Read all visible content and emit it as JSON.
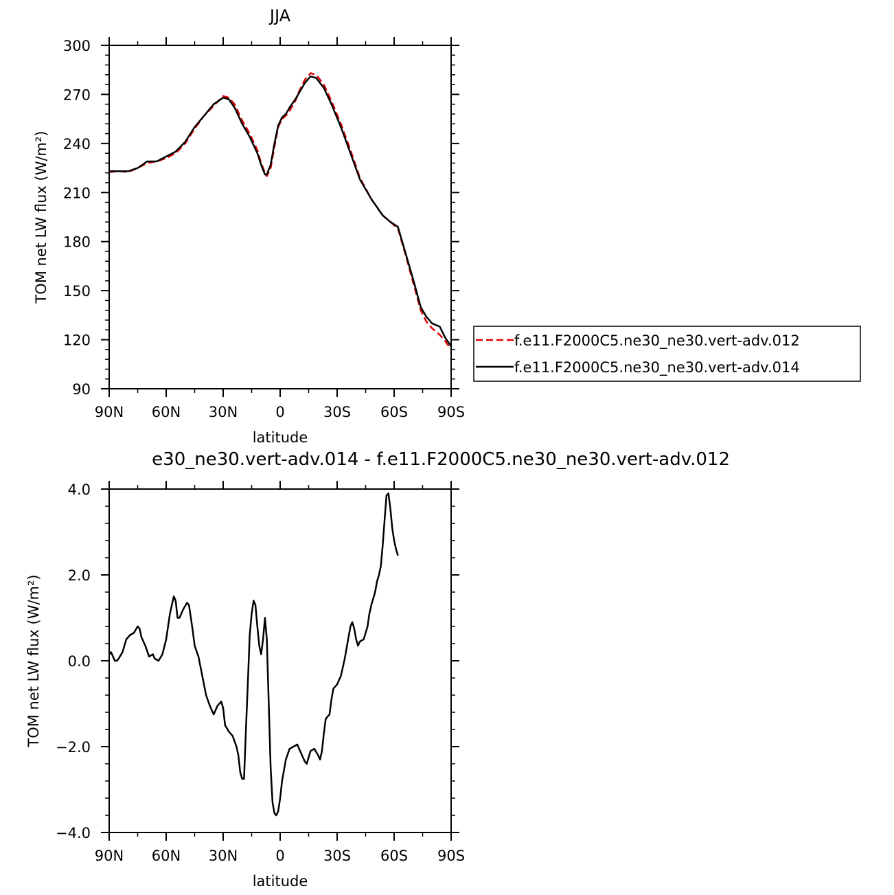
{
  "chart_data": [
    {
      "type": "line",
      "title": "JJA",
      "xlabel": "latitude",
      "ylabel": "TOM net LW flux (W/m²)",
      "xlim": [
        -90,
        90
      ],
      "ylim": [
        90,
        300
      ],
      "x_ticks": [
        -90,
        -60,
        -30,
        0,
        30,
        60,
        90
      ],
      "x_tick_labels": [
        "90N",
        "60N",
        "30N",
        "0",
        "30S",
        "60S",
        "90S"
      ],
      "y_ticks": [
        90,
        120,
        150,
        180,
        210,
        240,
        270,
        300
      ],
      "y_tick_labels": [
        "90",
        "120",
        "150",
        "180",
        "210",
        "240",
        "270",
        "300"
      ],
      "legend_position": "right",
      "series": [
        {
          "name": "f.e11.F2000C5.ne30_ne30.vert-adv.012",
          "color": "#e00000",
          "dash": "dashed",
          "points": [
            [
              -90,
              222.5
            ],
            [
              -85,
              223
            ],
            [
              -80,
              222.5
            ],
            [
              -75,
              225
            ],
            [
              -70,
              228
            ],
            [
              -65,
              229
            ],
            [
              -60,
              231
            ],
            [
              -55,
              234
            ],
            [
              -50,
              240
            ],
            [
              -45,
              249
            ],
            [
              -40,
              257
            ],
            [
              -35,
              263
            ],
            [
              -30,
              269
            ],
            [
              -27,
              268
            ],
            [
              -24,
              264
            ],
            [
              -20,
              254
            ],
            [
              -16,
              246
            ],
            [
              -12,
              236
            ],
            [
              -10,
              228
            ],
            [
              -8,
              222
            ],
            [
              -7,
              220
            ],
            [
              -5,
              225
            ],
            [
              -3,
              238
            ],
            [
              -1,
              250
            ],
            [
              1,
              255
            ],
            [
              3,
              257
            ],
            [
              5,
              260
            ],
            [
              8,
              266
            ],
            [
              10,
              272
            ],
            [
              13,
              279
            ],
            [
              16,
              283
            ],
            [
              19,
              282
            ],
            [
              23,
              276
            ],
            [
              27,
              266
            ],
            [
              32,
              252
            ],
            [
              37,
              236
            ],
            [
              42,
              219
            ],
            [
              48,
              206
            ],
            [
              54,
              196
            ],
            [
              58,
              192
            ],
            [
              62,
              188
            ],
            [
              66,
              172
            ],
            [
              70,
              155
            ],
            [
              74,
              138
            ],
            [
              77,
              131
            ],
            [
              80,
              127
            ],
            [
              84,
              123
            ],
            [
              87,
              119
            ],
            [
              90,
              114
            ]
          ]
        },
        {
          "name": "f.e11.F2000C5.ne30_ne30.vert-adv.014",
          "color": "#000000",
          "dash": "solid",
          "points": [
            [
              -90,
              223
            ],
            [
              -85,
              223
            ],
            [
              -80,
              223
            ],
            [
              -75,
              225
            ],
            [
              -70,
              229
            ],
            [
              -65,
              229
            ],
            [
              -60,
              232
            ],
            [
              -55,
              235
            ],
            [
              -50,
              241
            ],
            [
              -45,
              250
            ],
            [
              -40,
              257
            ],
            [
              -35,
              264
            ],
            [
              -30,
              268
            ],
            [
              -27,
              267
            ],
            [
              -24,
              262
            ],
            [
              -20,
              252
            ],
            [
              -16,
              244
            ],
            [
              -12,
              234
            ],
            [
              -10,
              227
            ],
            [
              -8,
              221
            ],
            [
              -7,
              221
            ],
            [
              -5,
              227
            ],
            [
              -3,
              240
            ],
            [
              -1,
              251
            ],
            [
              1,
              256
            ],
            [
              3,
              258
            ],
            [
              5,
              262
            ],
            [
              8,
              267
            ],
            [
              10,
              271
            ],
            [
              13,
              277
            ],
            [
              16,
              281
            ],
            [
              19,
              280
            ],
            [
              23,
              274
            ],
            [
              27,
              264
            ],
            [
              32,
              250
            ],
            [
              37,
              234
            ],
            [
              42,
              218
            ],
            [
              48,
              206
            ],
            [
              54,
              196
            ],
            [
              58,
              192
            ],
            [
              62,
              189
            ],
            [
              66,
              173
            ],
            [
              70,
              157
            ],
            [
              74,
              140
            ],
            [
              77,
              134
            ],
            [
              80,
              130
            ],
            [
              84,
              128
            ],
            [
              87,
              121
            ],
            [
              90,
              116
            ]
          ]
        }
      ]
    },
    {
      "type": "line",
      "title": "e30_ne30.vert-adv.014 - f.e11.F2000C5.ne30_ne30.vert-adv.012",
      "xlabel": "latitude",
      "ylabel": "TOM net LW flux (W/m²)",
      "xlim": [
        -90,
        90
      ],
      "ylim": [
        -4,
        4
      ],
      "x_ticks": [
        -90,
        -60,
        -30,
        0,
        30,
        60,
        90
      ],
      "x_tick_labels": [
        "90N",
        "60N",
        "30N",
        "0",
        "30S",
        "60S",
        "90S"
      ],
      "y_ticks": [
        -4,
        -2,
        0,
        2,
        4
      ],
      "y_tick_labels": [
        "-4.0",
        "-2.0",
        "0.0",
        "2.0",
        "4.0"
      ],
      "series": [
        {
          "color": "#000000",
          "dash": "solid",
          "points": [
            [
              -90,
              0.15
            ],
            [
              -89,
              0.2
            ],
            [
              -88,
              0.1
            ],
            [
              -87,
              0.0
            ],
            [
              -86,
              0.0
            ],
            [
              -85,
              0.05
            ],
            [
              -83,
              0.2
            ],
            [
              -81,
              0.5
            ],
            [
              -79,
              0.6
            ],
            [
              -77,
              0.65
            ],
            [
              -75,
              0.8
            ],
            [
              -74,
              0.75
            ],
            [
              -73,
              0.55
            ],
            [
              -71,
              0.35
            ],
            [
              -69,
              0.1
            ],
            [
              -67,
              0.15
            ],
            [
              -66,
              0.05
            ],
            [
              -64,
              0.0
            ],
            [
              -62,
              0.15
            ],
            [
              -60,
              0.5
            ],
            [
              -58,
              1.1
            ],
            [
              -56,
              1.5
            ],
            [
              -55,
              1.4
            ],
            [
              -54,
              1.0
            ],
            [
              -53,
              1.0
            ],
            [
              -51,
              1.2
            ],
            [
              -49,
              1.35
            ],
            [
              -48,
              1.3
            ],
            [
              -47,
              1.0
            ],
            [
              -46,
              0.7
            ],
            [
              -45,
              0.35
            ],
            [
              -43,
              0.1
            ],
            [
              -41,
              -0.35
            ],
            [
              -39,
              -0.8
            ],
            [
              -37,
              -1.05
            ],
            [
              -35,
              -1.25
            ],
            [
              -33,
              -1.05
            ],
            [
              -31,
              -0.95
            ],
            [
              -30,
              -1.1
            ],
            [
              -29,
              -1.5
            ],
            [
              -27,
              -1.65
            ],
            [
              -25,
              -1.75
            ],
            [
              -23,
              -2.0
            ],
            [
              -22,
              -2.2
            ],
            [
              -21,
              -2.6
            ],
            [
              -20,
              -2.75
            ],
            [
              -19,
              -2.75
            ],
            [
              -18,
              -1.6
            ],
            [
              -17,
              -0.5
            ],
            [
              -16,
              0.6
            ],
            [
              -15,
              1.1
            ],
            [
              -14,
              1.4
            ],
            [
              -13,
              1.3
            ],
            [
              -12,
              0.8
            ],
            [
              -11,
              0.35
            ],
            [
              -10,
              0.15
            ],
            [
              -9,
              0.5
            ],
            [
              -8,
              1.0
            ],
            [
              -7,
              0.5
            ],
            [
              -6,
              -1.0
            ],
            [
              -5,
              -2.5
            ],
            [
              -4,
              -3.3
            ],
            [
              -3,
              -3.55
            ],
            [
              -2,
              -3.6
            ],
            [
              -1,
              -3.5
            ],
            [
              0,
              -3.2
            ],
            [
              1,
              -2.8
            ],
            [
              3,
              -2.3
            ],
            [
              5,
              -2.05
            ],
            [
              7,
              -2.0
            ],
            [
              9,
              -1.95
            ],
            [
              11,
              -2.15
            ],
            [
              13,
              -2.35
            ],
            [
              14,
              -2.4
            ],
            [
              15,
              -2.25
            ],
            [
              16,
              -2.1
            ],
            [
              18,
              -2.05
            ],
            [
              20,
              -2.2
            ],
            [
              21,
              -2.3
            ],
            [
              22,
              -2.1
            ],
            [
              23,
              -1.7
            ],
            [
              24,
              -1.35
            ],
            [
              26,
              -1.25
            ],
            [
              27,
              -0.9
            ],
            [
              28,
              -0.65
            ],
            [
              30,
              -0.55
            ],
            [
              32,
              -0.35
            ],
            [
              34,
              0.05
            ],
            [
              35,
              0.3
            ],
            [
              36,
              0.55
            ],
            [
              37,
              0.8
            ],
            [
              38,
              0.9
            ],
            [
              39,
              0.75
            ],
            [
              40,
              0.5
            ],
            [
              41,
              0.35
            ],
            [
              42,
              0.45
            ],
            [
              44,
              0.5
            ],
            [
              46,
              0.8
            ],
            [
              47,
              1.1
            ],
            [
              48,
              1.3
            ],
            [
              49,
              1.45
            ],
            [
              50,
              1.6
            ],
            [
              51,
              1.85
            ],
            [
              52,
              2.0
            ],
            [
              53,
              2.2
            ],
            [
              54,
              2.7
            ],
            [
              55,
              3.3
            ],
            [
              56,
              3.85
            ],
            [
              57,
              3.9
            ],
            [
              58,
              3.55
            ],
            [
              59,
              3.1
            ],
            [
              60,
              2.8
            ],
            [
              61,
              2.6
            ],
            [
              62,
              2.45
            ]
          ]
        }
      ]
    }
  ]
}
